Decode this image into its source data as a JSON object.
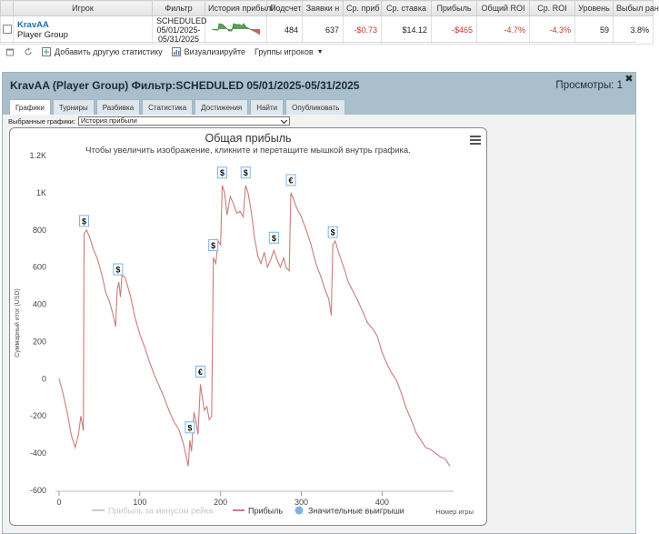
{
  "grid": {
    "headers": [
      "Игрок",
      "Фильтр",
      "История прибыли",
      "Подсчет",
      "Заявки н",
      "Ср. приб",
      "Ср. ставка",
      "Прибыль",
      "Общий ROI",
      "Ср. ROI",
      "Уровень",
      "Выбыл ран"
    ],
    "row": {
      "player_name": "KravAA",
      "player_group": "Player Group",
      "filter_line1": "SCHEDULED",
      "filter_line2": "05/01/2025-",
      "filter_line3": "05/31/2025",
      "count": "484",
      "entries": "637",
      "avg_profit": "-$0.73",
      "avg_stake": "$14.12",
      "profit": "-$465",
      "total_roi": "-4.7%",
      "avg_roi": "-4.3%",
      "level": "59",
      "early_out": "3.8%"
    }
  },
  "toolbar": {
    "add_stat": "Добавить другую статистику",
    "visualize": "Визуализируйте",
    "player_groups": "Группы игроков"
  },
  "window": {
    "title": "KravAA (Player Group) Фильтр:SCHEDULED 05/01/2025-05/31/2025",
    "views": "Просмотры: 1",
    "tabs": [
      "Графики",
      "Турниры",
      "Разбивка",
      "Статистика",
      "Достижения",
      "Найти",
      "Опубликовать"
    ],
    "active_tab": 0,
    "selected_charts_label": "Выбранные графики:",
    "selected_chart_value": "История прибыли"
  },
  "colors": {
    "profit_line": "#c97d7d",
    "rake_line": "#cccccc",
    "wins_marker": "#7fb2e5",
    "negative_text": "#c0392b",
    "accent_link": "#1a6fb5"
  },
  "chart_data": {
    "type": "line",
    "title": "Общая прибыль",
    "subtitle": "Чтобы увеличить изображение, кликните и перетащите мышкой внутрь графика.",
    "ylabel": "Суммарный итог (USD)",
    "xlabel": "Номер игры",
    "xlim": [
      0,
      484
    ],
    "ylim": [
      -600,
      1200
    ],
    "y_ticks": [
      "1.2K",
      "1K",
      "800",
      "600",
      "400",
      "200",
      "0",
      "-200",
      "-400",
      "-600"
    ],
    "x_ticks": [
      "0",
      "100",
      "200",
      "300",
      "400"
    ],
    "legend": [
      "Прибыль за минусом рейка",
      "Прибыль",
      "Значительные выигрыши"
    ],
    "series": [
      {
        "name": "Прибыль",
        "points": [
          [
            0,
            0
          ],
          [
            5,
            -80
          ],
          [
            10,
            -180
          ],
          [
            15,
            -300
          ],
          [
            20,
            -370
          ],
          [
            24,
            -300
          ],
          [
            27,
            -200
          ],
          [
            30,
            -280
          ],
          [
            31,
            780
          ],
          [
            34,
            800
          ],
          [
            38,
            760
          ],
          [
            42,
            700
          ],
          [
            48,
            640
          ],
          [
            54,
            540
          ],
          [
            58,
            460
          ],
          [
            62,
            420
          ],
          [
            66,
            360
          ],
          [
            70,
            280
          ],
          [
            72,
            480
          ],
          [
            74,
            520
          ],
          [
            76,
            440
          ],
          [
            78,
            560
          ],
          [
            82,
            540
          ],
          [
            88,
            450
          ],
          [
            94,
            330
          ],
          [
            100,
            240
          ],
          [
            106,
            170
          ],
          [
            112,
            90
          ],
          [
            118,
            20
          ],
          [
            124,
            -40
          ],
          [
            130,
            -100
          ],
          [
            136,
            -170
          ],
          [
            142,
            -230
          ],
          [
            148,
            -270
          ],
          [
            154,
            -350
          ],
          [
            158,
            -430
          ],
          [
            160,
            -470
          ],
          [
            162,
            -330
          ],
          [
            164,
            -390
          ],
          [
            167,
            -180
          ],
          [
            170,
            -240
          ],
          [
            172,
            -300
          ],
          [
            175,
            -30
          ],
          [
            178,
            -120
          ],
          [
            180,
            -170
          ],
          [
            183,
            -150
          ],
          [
            186,
            -220
          ],
          [
            189,
            -200
          ],
          [
            191,
            650
          ],
          [
            194,
            620
          ],
          [
            197,
            740
          ],
          [
            200,
            720
          ],
          [
            202,
            1040
          ],
          [
            205,
            1000
          ],
          [
            208,
            880
          ],
          [
            212,
            980
          ],
          [
            216,
            940
          ],
          [
            220,
            890
          ],
          [
            224,
            900
          ],
          [
            228,
            870
          ],
          [
            231,
            1040
          ],
          [
            234,
            1000
          ],
          [
            238,
            900
          ],
          [
            242,
            760
          ],
          [
            246,
            660
          ],
          [
            250,
            620
          ],
          [
            254,
            680
          ],
          [
            258,
            600
          ],
          [
            262,
            640
          ],
          [
            266,
            690
          ],
          [
            270,
            640
          ],
          [
            274,
            600
          ],
          [
            278,
            650
          ],
          [
            281,
            600
          ],
          [
            285,
            580
          ],
          [
            287,
            1000
          ],
          [
            290,
            970
          ],
          [
            294,
            920
          ],
          [
            300,
            870
          ],
          [
            306,
            800
          ],
          [
            312,
            720
          ],
          [
            318,
            620
          ],
          [
            324,
            550
          ],
          [
            330,
            470
          ],
          [
            334,
            430
          ],
          [
            337,
            340
          ],
          [
            339,
            720
          ],
          [
            342,
            740
          ],
          [
            346,
            680
          ],
          [
            350,
            630
          ],
          [
            354,
            580
          ],
          [
            358,
            520
          ],
          [
            364,
            470
          ],
          [
            370,
            420
          ],
          [
            376,
            360
          ],
          [
            382,
            300
          ],
          [
            388,
            270
          ],
          [
            394,
            230
          ],
          [
            400,
            140
          ],
          [
            406,
            80
          ],
          [
            412,
            30
          ],
          [
            418,
            -10
          ],
          [
            424,
            -80
          ],
          [
            430,
            -160
          ],
          [
            436,
            -220
          ],
          [
            442,
            -290
          ],
          [
            448,
            -330
          ],
          [
            454,
            -370
          ],
          [
            460,
            -380
          ],
          [
            466,
            -400
          ],
          [
            472,
            -420
          ],
          [
            478,
            -430
          ],
          [
            484,
            -470
          ]
        ]
      }
    ],
    "significant_wins": [
      {
        "x": 31,
        "y": 780,
        "label": "$"
      },
      {
        "x": 73,
        "y": 520,
        "label": "$"
      },
      {
        "x": 162,
        "y": -330,
        "label": "$"
      },
      {
        "x": 175,
        "y": -30,
        "label": "€"
      },
      {
        "x": 191,
        "y": 650,
        "label": "$"
      },
      {
        "x": 202,
        "y": 1040,
        "label": "$"
      },
      {
        "x": 231,
        "y": 1040,
        "label": "$"
      },
      {
        "x": 266,
        "y": 690,
        "label": "$"
      },
      {
        "x": 287,
        "y": 1000,
        "label": "€"
      },
      {
        "x": 339,
        "y": 720,
        "label": "$"
      }
    ]
  }
}
